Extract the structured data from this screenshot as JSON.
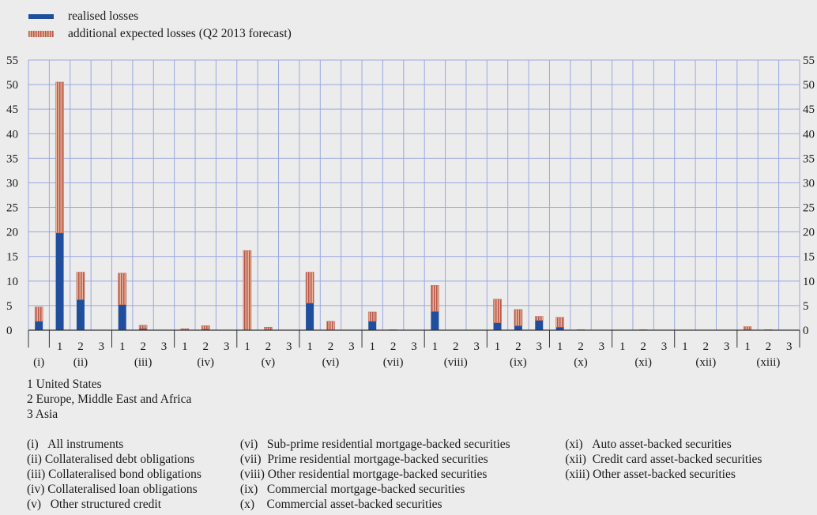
{
  "chart_data": {
    "type": "bar",
    "stacked": true,
    "legend": [
      {
        "name": "realised losses",
        "color": "#1f4e9c",
        "pattern": "solid"
      },
      {
        "name": "additional expected losses  (Q2 2013 forecast)",
        "color": "#c8805f",
        "pattern": "vertical-stripes"
      }
    ],
    "legend_position": "top-left",
    "grid": true,
    "ylim": [
      0,
      55
    ],
    "yticks": [
      0,
      5,
      10,
      15,
      20,
      25,
      30,
      35,
      40,
      45,
      50,
      55
    ],
    "right_axis": true,
    "region_labels": [
      "1",
      "2",
      "3"
    ],
    "groups": [
      {
        "label": "(i)",
        "bars": [
          {
            "realised": 1.8,
            "expected": 2.9
          }
        ]
      },
      {
        "label": "(ii)",
        "bars": [
          {
            "realised": 19.8,
            "expected": 30.7
          },
          {
            "realised": 6.2,
            "expected": 5.6
          },
          {
            "realised": 0,
            "expected": 0
          }
        ]
      },
      {
        "label": "(iii)",
        "bars": [
          {
            "realised": 5.2,
            "expected": 6.4
          },
          {
            "realised": 0.3,
            "expected": 0.7
          },
          {
            "realised": 0,
            "expected": 0
          }
        ]
      },
      {
        "label": "(iv)",
        "bars": [
          {
            "realised": 0.1,
            "expected": 0.2
          },
          {
            "realised": 0.2,
            "expected": 0.7
          },
          {
            "realised": 0,
            "expected": 0
          }
        ]
      },
      {
        "label": "(v)",
        "bars": [
          {
            "realised": 0,
            "expected": 16.2
          },
          {
            "realised": 0.1,
            "expected": 0.5
          },
          {
            "realised": 0,
            "expected": 0
          }
        ]
      },
      {
        "label": "(vi)",
        "bars": [
          {
            "realised": 5.5,
            "expected": 6.3
          },
          {
            "realised": 0,
            "expected": 1.8
          },
          {
            "realised": 0,
            "expected": 0
          }
        ]
      },
      {
        "label": "(vii)",
        "bars": [
          {
            "realised": 1.8,
            "expected": 1.9
          },
          {
            "realised": 0,
            "expected": 0.1
          },
          {
            "realised": 0,
            "expected": 0
          }
        ]
      },
      {
        "label": "(viii)",
        "bars": [
          {
            "realised": 3.8,
            "expected": 5.3
          },
          {
            "realised": 0,
            "expected": 0
          },
          {
            "realised": 0,
            "expected": 0
          }
        ]
      },
      {
        "label": "(ix)",
        "bars": [
          {
            "realised": 1.5,
            "expected": 4.8
          },
          {
            "realised": 0.9,
            "expected": 3.3
          },
          {
            "realised": 2.0,
            "expected": 0.8
          }
        ]
      },
      {
        "label": "(x)",
        "bars": [
          {
            "realised": 0.6,
            "expected": 2.0
          },
          {
            "realised": 0,
            "expected": 0.1
          },
          {
            "realised": 0,
            "expected": 0
          }
        ]
      },
      {
        "label": "(xi)",
        "bars": [
          {
            "realised": 0,
            "expected": 0
          },
          {
            "realised": 0,
            "expected": 0.1
          },
          {
            "realised": 0,
            "expected": 0
          }
        ]
      },
      {
        "label": "(xii)",
        "bars": [
          {
            "realised": 0,
            "expected": 0
          },
          {
            "realised": 0,
            "expected": 0
          },
          {
            "realised": 0,
            "expected": 0
          }
        ]
      },
      {
        "label": "(xiii)",
        "bars": [
          {
            "realised": 0.1,
            "expected": 0.6
          },
          {
            "realised": 0,
            "expected": 0.1
          },
          {
            "realised": 0,
            "expected": 0
          }
        ]
      }
    ]
  },
  "notes": {
    "countries": [
      "1 United States",
      "2 Europe, Middle East and Africa",
      "3 Asia"
    ],
    "categories": [
      [
        {
          "tag": "(i)",
          "text": "All instruments"
        },
        {
          "tag": "(ii)",
          "text": "Collateralised debt obligations"
        },
        {
          "tag": "(iii)",
          "text": "Collateralised bond obligations"
        },
        {
          "tag": "(iv)",
          "text": "Collateralised loan obligations"
        },
        {
          "tag": "(v)",
          "text": "Other structured credit"
        }
      ],
      [
        {
          "tag": "(vi)",
          "text": "Sub-prime residential mortgage-backed securities"
        },
        {
          "tag": "(vii)",
          "text": "Prime residential mortgage-backed securities"
        },
        {
          "tag": "(viii)",
          "text": "Other residential mortgage-backed securities"
        },
        {
          "tag": "(ix)",
          "text": "Commercial mortgage-backed securities"
        },
        {
          "tag": "(x)",
          "text": "Commercial asset-backed securities"
        }
      ],
      [
        {
          "tag": "(xi)",
          "text": "Auto asset-backed securities"
        },
        {
          "tag": "(xii)",
          "text": "Credit card asset-backed securities"
        },
        {
          "tag": "(xiii)",
          "text": "Other asset-backed securities"
        }
      ]
    ]
  }
}
